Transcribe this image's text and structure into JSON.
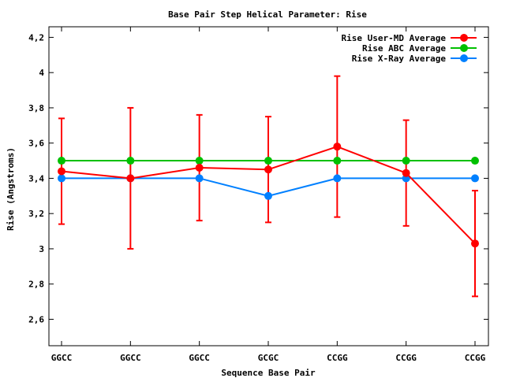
{
  "chart_data": {
    "type": "line",
    "title": "Base Pair Step Helical Parameter: Rise",
    "xlabel": "Sequence Base Pair",
    "ylabel": "Rise (Angstroms)",
    "categories": [
      "GGCC",
      "GGCC",
      "GGCC",
      "GCGC",
      "CCGG",
      "CCGG",
      "CCGG"
    ],
    "ylim": [
      2.45,
      4.26
    ],
    "yticks": [
      2.6,
      2.8,
      3,
      3.2,
      3.4,
      3.6,
      3.8,
      4,
      4.2
    ],
    "ytick_labels": [
      "2,6",
      "2,8",
      "3",
      "3,2",
      "3,4",
      "3,6",
      "3,8",
      "4",
      "4,2"
    ],
    "grid": false,
    "legend_position": "top-right",
    "series": [
      {
        "name": "Rise User-MD Average",
        "color": "#ff0000",
        "values": [
          3.44,
          3.4,
          3.46,
          3.45,
          3.58,
          3.43,
          3.03
        ],
        "error_low": [
          3.14,
          3.0,
          3.16,
          3.15,
          3.18,
          3.13,
          2.73
        ],
        "error_high": [
          3.74,
          3.8,
          3.76,
          3.75,
          3.98,
          3.73,
          3.33
        ]
      },
      {
        "name": "Rise ABC Average",
        "color": "#00c000",
        "values": [
          3.5,
          3.5,
          3.5,
          3.5,
          3.5,
          3.5,
          3.5
        ]
      },
      {
        "name": "Rise X-Ray Average",
        "color": "#0080ff",
        "values": [
          3.4,
          3.4,
          3.4,
          3.3,
          3.4,
          3.4,
          3.4
        ]
      }
    ]
  }
}
